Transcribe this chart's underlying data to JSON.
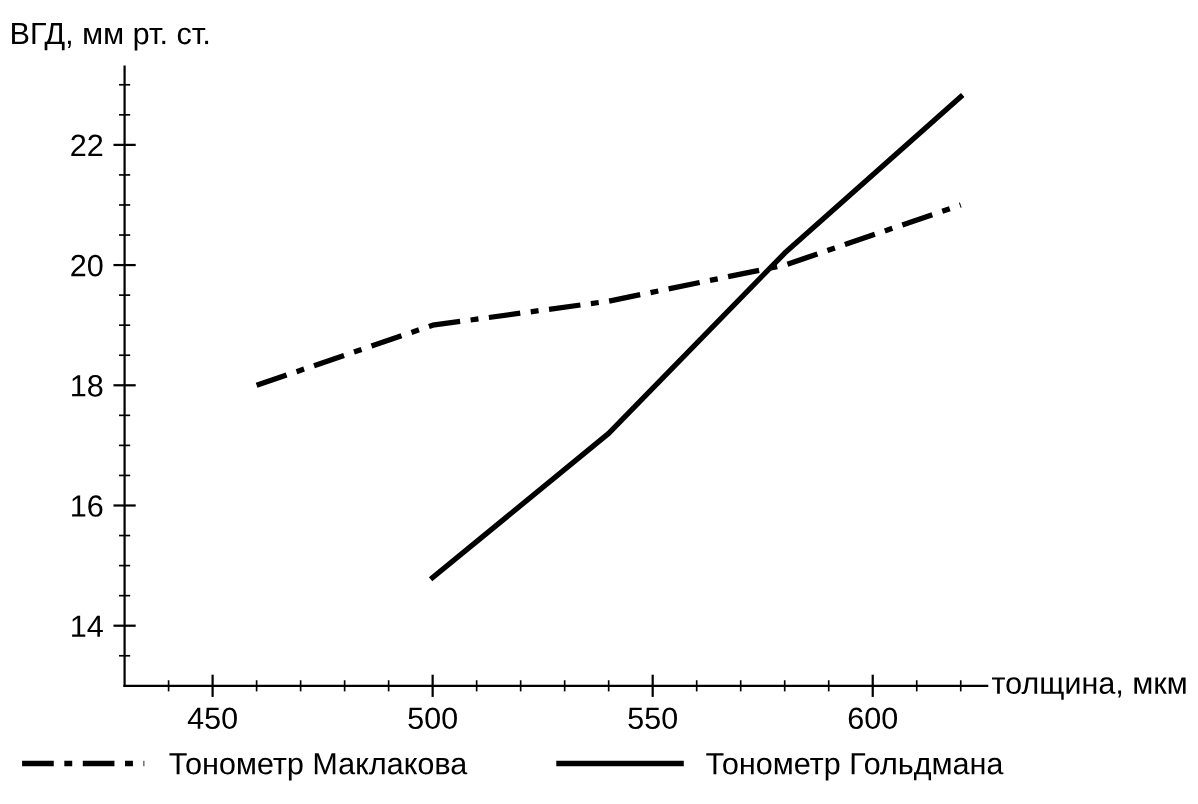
{
  "chart_data": {
    "type": "line",
    "xlabel": "толщина, мкм",
    "ylabel": "ВГД, мм рт. ст.",
    "xlim": [
      430,
      626
    ],
    "ylim": [
      13,
      23.3
    ],
    "xticks": [
      450,
      500,
      550,
      600
    ],
    "yticks": [
      14,
      16,
      18,
      20,
      22
    ],
    "grid": false,
    "legend": "bottom",
    "marker": "none",
    "series": [
      {
        "name": "Тонометр Маклакова",
        "color": "#000000",
        "line_style": "dashdot",
        "x": [
          460,
          500,
          540,
          580,
          620
        ],
        "values": [
          18,
          19,
          19.4,
          20,
          21
        ]
      },
      {
        "name": "Тонометр Гольдмана",
        "color": "#000000",
        "line_style": "solid",
        "x": [
          500,
          540,
          580,
          620
        ],
        "values": [
          14.8,
          17.2,
          20.2,
          22.8
        ]
      }
    ]
  }
}
